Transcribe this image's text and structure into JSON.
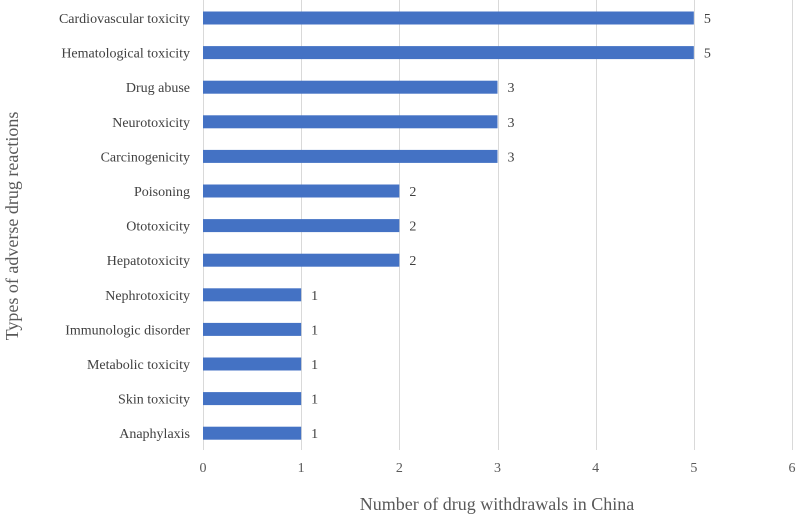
{
  "chart_data": {
    "type": "bar",
    "orientation": "horizontal",
    "categories": [
      "Cardiovascular toxicity",
      "Hematological toxicity",
      "Drug abuse",
      "Neurotoxicity",
      "Carcinogenicity",
      "Poisoning",
      "Ototoxicity",
      "Hepatotoxicity",
      "Nephrotoxicity",
      "Immunologic disorder",
      "Metabolic toxicity",
      "Skin toxicity",
      "Anaphylaxis"
    ],
    "values": [
      5,
      5,
      3,
      3,
      3,
      2,
      2,
      2,
      1,
      1,
      1,
      1,
      1
    ],
    "data_labels": [
      "5",
      "5",
      "3",
      "3",
      "3",
      "2",
      "2",
      "2",
      "1",
      "1",
      "1",
      "1",
      "1"
    ],
    "title": "",
    "xlabel": "Number of drug withdrawals in China",
    "ylabel": "Types of adverse drug reactions",
    "xlim": [
      0,
      6
    ],
    "x_ticks": [
      "0",
      "1",
      "2",
      "3",
      "4",
      "5",
      "6"
    ],
    "grid": "vertical",
    "legend": "none",
    "bar_color": "#4472c4",
    "grid_color": "#d9d9d9"
  }
}
